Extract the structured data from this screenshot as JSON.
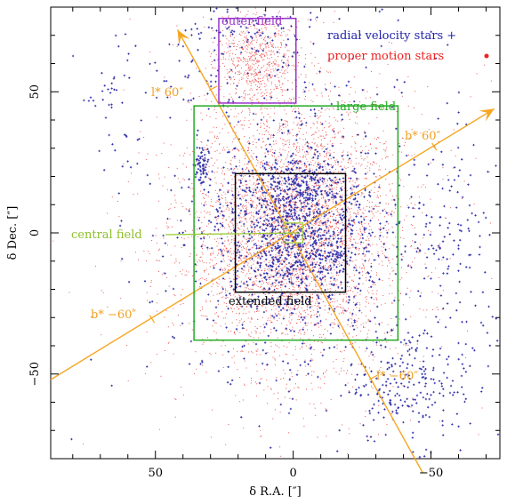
{
  "chart_data": {
    "type": "scatter",
    "xlabel": "δ R.A. [″]",
    "ylabel": "δ Dec. [″]",
    "xlim": [
      88,
      -75
    ],
    "ylim": [
      -80,
      80
    ],
    "x_ticks": [
      50,
      0,
      -50
    ],
    "y_ticks": [
      50,
      0,
      -50
    ],
    "x_tick_labels": [
      "50",
      "0",
      "−50"
    ],
    "y_tick_labels": [
      "50",
      "0",
      "−50"
    ],
    "legend_placement": "top-right",
    "legend": [
      {
        "label": "radial velocity stars",
        "color": "#2222aa",
        "marker": "+"
      },
      {
        "label": "proper motion stars",
        "color": "#ee2222",
        "marker": "•"
      }
    ],
    "fields": [
      {
        "label": "outer field",
        "color": "#9933cc",
        "x": [
          27,
          -1
        ],
        "y": [
          46,
          76
        ]
      },
      {
        "label": "large field",
        "color": "#22aa22",
        "x": [
          36,
          -38
        ],
        "y": [
          -38,
          45
        ]
      },
      {
        "label": "extended field",
        "color": "#000000",
        "x": [
          21,
          -19
        ],
        "y": [
          -21,
          21
        ]
      },
      {
        "label": "central field",
        "color": "#99cc33",
        "x": [
          3.5,
          -3.5
        ],
        "y": [
          -3.5,
          3.5
        ]
      }
    ],
    "galactic_axes": [
      {
        "name": "l*",
        "color": "#f5a623",
        "from": [
          -47,
          -85
        ],
        "to": [
          42,
          72
        ],
        "ticks": [
          {
            "label": "l* 60″",
            "x": 26,
            "y": 52
          },
          {
            "label": "l* −60″",
            "x": -31,
            "y": -51
          }
        ]
      },
      {
        "name": "b*",
        "color": "#f5a623",
        "from": [
          88,
          -52
        ],
        "to": [
          -73,
          44
        ],
        "ticks": [
          {
            "label": "b* 60″",
            "x": -52,
            "y": 33
          },
          {
            "label": "b* −60″",
            "x": 51,
            "y": -29
          }
        ]
      }
    ],
    "rv_clusters": [
      {
        "x": 0,
        "y": 0,
        "sx": 16,
        "sy": 17,
        "n": 900
      },
      {
        "x": -3,
        "y": 16,
        "sx": 8,
        "sy": 5,
        "n": 200
      },
      {
        "x": -5,
        "y": -5,
        "sx": 9,
        "sy": 7,
        "n": 220
      },
      {
        "x": 0,
        "y": 0,
        "sx": 34,
        "sy": 42,
        "n": 360
      },
      {
        "x": -42,
        "y": -53,
        "sx": 11,
        "sy": 11,
        "n": 230
      },
      {
        "x": -55,
        "y": -2,
        "sx": 10,
        "sy": 18,
        "n": 120
      },
      {
        "x": 33,
        "y": 24,
        "sx": 1.5,
        "sy": 4,
        "n": 60
      },
      {
        "x": 22,
        "y": 63,
        "sx": 22,
        "sy": 10,
        "n": 100
      },
      {
        "x": 66,
        "y": 50,
        "sx": 4,
        "sy": 5,
        "n": 20
      },
      {
        "x": 63,
        "y": 28,
        "sx": 4,
        "sy": 4,
        "n": 12
      },
      {
        "x": 12,
        "y": 72,
        "sx": 12,
        "sy": 3,
        "n": 35
      }
    ],
    "pm_clusters": [
      {
        "x": 0,
        "y": 0,
        "sx": 19,
        "sy": 23,
        "n": 3800
      },
      {
        "x": 13,
        "y": 61,
        "sx": 8,
        "sy": 9,
        "n": 700
      },
      {
        "x": 0,
        "y": 0,
        "sx": 32,
        "sy": 36,
        "n": 600
      }
    ],
    "annotations": {
      "outer": "outer field",
      "large": "large field",
      "extended": "extended field",
      "central": "central field",
      "rv_legend": "radial velocity stars +",
      "pm_legend": "proper motion stars",
      "l_pos": "l* 60″",
      "l_neg": "l* −60″",
      "b_pos": "b* 60″",
      "b_neg": "b* −60″"
    }
  }
}
